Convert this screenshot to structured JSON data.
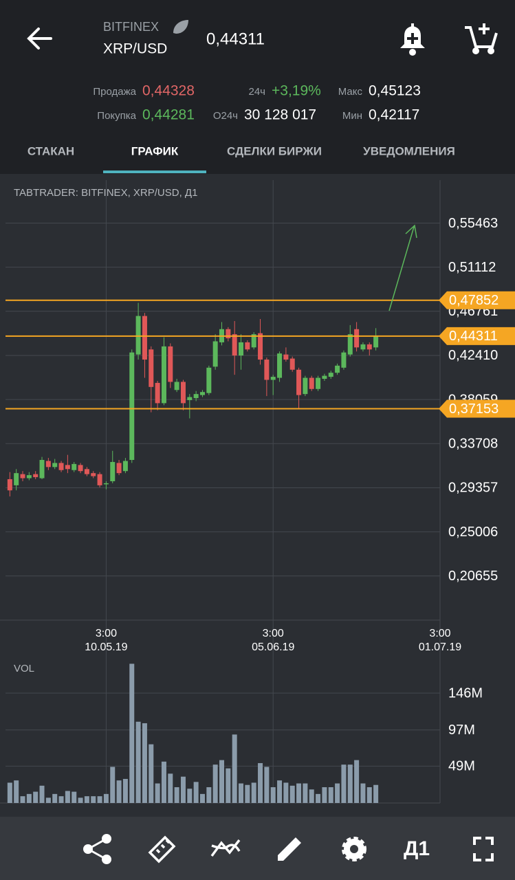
{
  "header": {
    "exchange": "BITFINEX",
    "pair": "XRP/USD",
    "price": "0,44311"
  },
  "stats": {
    "sell_label": "Продажа",
    "sell": "0,44328",
    "change_label": "24ч",
    "change": "+3,19%",
    "max_label": "Макс",
    "max": "0,45123",
    "buy_label": "Покупка",
    "buy": "0,44281",
    "volume_label": "О24ч",
    "volume": "30 128 017",
    "min_label": "Мин",
    "min": "0,42117"
  },
  "tabs": [
    "СТАКАН",
    "ГРАФИК",
    "СДЕЛКИ БИРЖИ",
    "УВЕДОМЛЕНИЯ"
  ],
  "toolbar": {
    "timeframe": "Д1"
  },
  "chart_data": {
    "type": "candlestick",
    "title": "TABTRADER: BITFINEX, XRP/USD, Д1",
    "up_color": "#5cb85c",
    "down_color": "#e05858",
    "grid": true,
    "xlim": [
      "24.04.19",
      "01.07.19"
    ],
    "xticks": [
      {
        "time": "3:00",
        "date": "10.05.19"
      },
      {
        "time": "3:00",
        "date": "05.06.19"
      },
      {
        "time": "3:00",
        "date": "01.07.19"
      }
    ],
    "ylim": [
      0.163,
      0.597
    ],
    "yticks": [
      {
        "value": 0.55463,
        "label": "0,55463"
      },
      {
        "value": 0.51112,
        "label": "0,51112"
      },
      {
        "value": 0.46761,
        "label": "0,46761"
      },
      {
        "value": 0.4241,
        "label": "0,42410"
      },
      {
        "value": 0.38059,
        "label": "0,38059"
      },
      {
        "value": 0.33708,
        "label": "0,33708"
      },
      {
        "value": 0.29357,
        "label": "0,29357"
      },
      {
        "value": 0.25006,
        "label": "0,25006"
      },
      {
        "value": 0.20655,
        "label": "0,20655"
      }
    ],
    "levels": [
      {
        "value": 0.47852,
        "label": "0,47852"
      },
      {
        "value": 0.44311,
        "label": "0,44311"
      },
      {
        "value": 0.37153,
        "label": "0,37153"
      }
    ],
    "level_color": "#f5a623",
    "x": [
      "25.04.19",
      "26.04.19",
      "27.04.19",
      "28.04.19",
      "29.04.19",
      "30.04.19",
      "01.05.19",
      "02.05.19",
      "03.05.19",
      "04.05.19",
      "05.05.19",
      "06.05.19",
      "07.05.19",
      "08.05.19",
      "09.05.19",
      "10.05.19",
      "11.05.19",
      "12.05.19",
      "13.05.19",
      "14.05.19",
      "15.05.19",
      "16.05.19",
      "17.05.19",
      "18.05.19",
      "19.05.19",
      "20.05.19",
      "21.05.19",
      "22.05.19",
      "23.05.19",
      "24.05.19",
      "25.05.19",
      "26.05.19",
      "27.05.19",
      "28.05.19",
      "29.05.19",
      "30.05.19",
      "31.05.19",
      "01.06.19",
      "02.06.19",
      "03.06.19",
      "04.06.19",
      "05.06.19",
      "06.06.19",
      "07.06.19",
      "08.06.19",
      "09.06.19",
      "10.06.19",
      "11.06.19",
      "12.06.19",
      "13.06.19",
      "14.06.19",
      "15.06.19",
      "16.06.19",
      "17.06.19",
      "18.06.19",
      "19.06.19",
      "20.06.19",
      "21.06.19"
    ],
    "open": [
      0.302,
      0.296,
      0.307,
      0.303,
      0.307,
      0.303,
      0.32,
      0.314,
      0.318,
      0.316,
      0.311,
      0.316,
      0.312,
      0.308,
      0.307,
      0.297,
      0.3,
      0.318,
      0.31,
      0.321,
      0.425,
      0.463,
      0.43,
      0.397,
      0.377,
      0.433,
      0.39,
      0.398,
      0.38,
      0.382,
      0.385,
      0.387,
      0.413,
      0.437,
      0.45,
      0.445,
      0.424,
      0.437,
      0.432,
      0.446,
      0.42,
      0.4,
      0.402,
      0.425,
      0.421,
      0.41,
      0.386,
      0.402,
      0.391,
      0.401,
      0.403,
      0.407,
      0.412,
      0.425,
      0.45,
      0.43,
      0.435,
      0.432
    ],
    "high": [
      0.309,
      0.312,
      0.31,
      0.309,
      0.31,
      0.324,
      0.323,
      0.322,
      0.32,
      0.326,
      0.319,
      0.318,
      0.314,
      0.31,
      0.309,
      0.3,
      0.33,
      0.321,
      0.323,
      0.43,
      0.476,
      0.466,
      0.433,
      0.399,
      0.442,
      0.436,
      0.401,
      0.4,
      0.386,
      0.389,
      0.39,
      0.414,
      0.445,
      0.457,
      0.452,
      0.458,
      0.445,
      0.439,
      0.447,
      0.46,
      0.422,
      0.405,
      0.428,
      0.432,
      0.423,
      0.412,
      0.404,
      0.404,
      0.404,
      0.406,
      0.409,
      0.416,
      0.429,
      0.454,
      0.457,
      0.437,
      0.437,
      0.451
    ],
    "low": [
      0.285,
      0.291,
      0.3,
      0.301,
      0.302,
      0.302,
      0.311,
      0.312,
      0.309,
      0.308,
      0.309,
      0.308,
      0.305,
      0.303,
      0.294,
      0.292,
      0.298,
      0.306,
      0.308,
      0.318,
      0.42,
      0.402,
      0.368,
      0.37,
      0.375,
      0.392,
      0.388,
      0.37,
      0.362,
      0.379,
      0.383,
      0.385,
      0.41,
      0.434,
      0.438,
      0.405,
      0.41,
      0.428,
      0.43,
      0.415,
      0.384,
      0.385,
      0.398,
      0.418,
      0.408,
      0.372,
      0.384,
      0.389,
      0.389,
      0.399,
      0.401,
      0.405,
      0.41,
      0.423,
      0.428,
      0.428,
      0.424,
      0.429
    ],
    "close": [
      0.291,
      0.308,
      0.303,
      0.306,
      0.304,
      0.321,
      0.314,
      0.318,
      0.311,
      0.312,
      0.317,
      0.31,
      0.307,
      0.305,
      0.296,
      0.298,
      0.319,
      0.308,
      0.32,
      0.427,
      0.463,
      0.42,
      0.393,
      0.377,
      0.433,
      0.398,
      0.398,
      0.377,
      0.383,
      0.386,
      0.388,
      0.412,
      0.438,
      0.45,
      0.441,
      0.424,
      0.437,
      0.43,
      0.445,
      0.42,
      0.4,
      0.403,
      0.426,
      0.42,
      0.41,
      0.385,
      0.402,
      0.391,
      0.402,
      0.404,
      0.407,
      0.414,
      0.427,
      0.445,
      0.432,
      0.435,
      0.43,
      0.443
    ],
    "volume": {
      "title": "VOL",
      "color": "#8b9cab",
      "ylim": [
        0,
        190
      ],
      "yticks": [
        {
          "value": 146,
          "label": "146M"
        },
        {
          "value": 97,
          "label": "97M"
        },
        {
          "value": 49,
          "label": "49M"
        }
      ],
      "values": [
        27,
        30,
        9,
        12,
        15,
        23,
        7,
        12,
        9,
        16,
        15,
        7,
        9,
        9,
        9,
        12,
        48,
        30,
        32,
        185,
        108,
        106,
        78,
        26,
        55,
        39,
        21,
        35,
        19,
        28,
        12,
        21,
        51,
        57,
        46,
        91,
        26,
        24,
        27,
        53,
        48,
        21,
        30,
        27,
        23,
        26,
        26,
        18,
        12,
        21,
        21,
        26,
        51,
        51,
        57,
        26,
        21,
        24
      ]
    }
  }
}
